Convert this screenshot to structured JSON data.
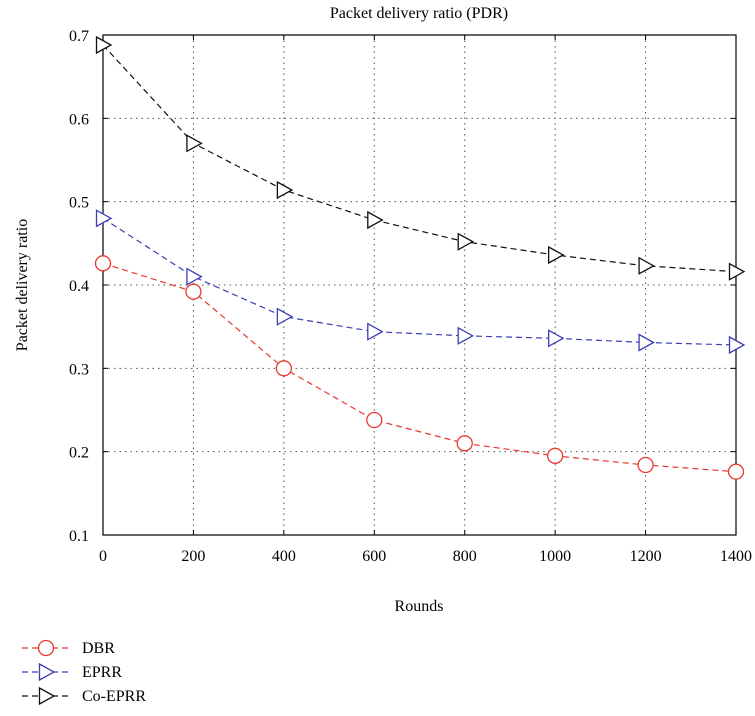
{
  "chart_data": {
    "type": "line",
    "title": "Packet delivery ratio (PDR)",
    "xlabel": "Rounds",
    "ylabel": "Packet delivery ratio",
    "x": [
      0,
      200,
      400,
      600,
      800,
      1000,
      1200,
      1400
    ],
    "xlim": [
      0,
      1400
    ],
    "ylim": [
      0.1,
      0.7
    ],
    "xticks": [
      "0",
      "200",
      "400",
      "600",
      "800",
      "1000",
      "1200",
      "1400"
    ],
    "yticks": [
      "0.1",
      "0.2",
      "0.3",
      "0.4",
      "0.5",
      "0.6",
      "0.7"
    ],
    "grid": true,
    "legend_position": "bottom-left, outside plot",
    "series": [
      {
        "name": "DBR",
        "marker": "circle",
        "color": "#e8392f",
        "values": [
          0.426,
          0.392,
          0.3,
          0.238,
          0.21,
          0.195,
          0.184,
          0.176
        ]
      },
      {
        "name": "EPRR",
        "marker": "triangle-right",
        "color": "#3a3fb5",
        "values": [
          0.48,
          0.41,
          0.362,
          0.344,
          0.339,
          0.336,
          0.331,
          0.328
        ]
      },
      {
        "name": "Co-EPRR",
        "marker": "triangle-right",
        "color": "#111111",
        "values": [
          0.688,
          0.57,
          0.514,
          0.478,
          0.452,
          0.436,
          0.423,
          0.416
        ]
      }
    ]
  }
}
